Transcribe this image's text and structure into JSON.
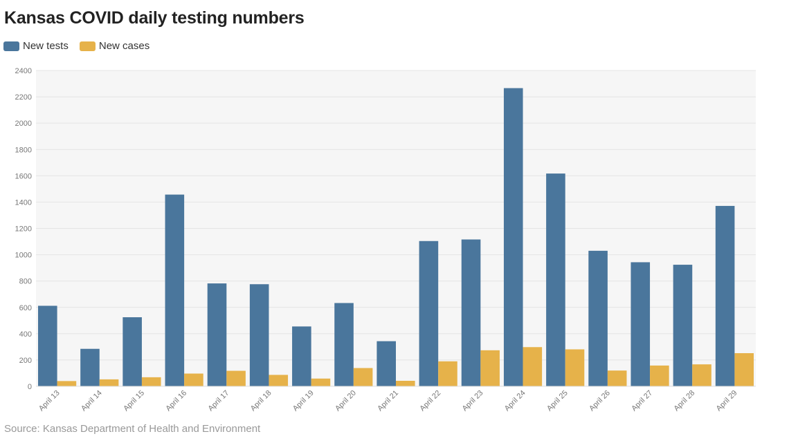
{
  "title": "Kansas COVID daily testing numbers",
  "source": "Source: Kansas Department of Health and Environment",
  "chart_data": {
    "type": "bar",
    "title": "Kansas COVID daily testing numbers",
    "xlabel": "",
    "ylabel": "",
    "ylim": [
      0,
      2400
    ],
    "yticks": [
      0,
      200,
      400,
      600,
      800,
      1000,
      1200,
      1400,
      1600,
      1800,
      2000,
      2200,
      2400
    ],
    "grid": true,
    "legend_position": "top-left",
    "categories": [
      "April 13",
      "April 14",
      "April 15",
      "April 16",
      "April 17",
      "April 18",
      "April 19",
      "April 20",
      "April 21",
      "April 22",
      "April 23",
      "April 24",
      "April 25",
      "April 26",
      "April 27",
      "April 28",
      "April 29"
    ],
    "series": [
      {
        "name": "New tests",
        "color": "#4a769c",
        "values": [
          612,
          285,
          525,
          1457,
          782,
          776,
          455,
          633,
          343,
          1104,
          1116,
          2266,
          1617,
          1030,
          943,
          924,
          1371
        ]
      },
      {
        "name": "New cases",
        "color": "#e6b24a",
        "values": [
          40,
          53,
          69,
          97,
          118,
          87,
          59,
          139,
          42,
          190,
          274,
          298,
          281,
          120,
          158,
          167,
          252
        ]
      }
    ]
  }
}
